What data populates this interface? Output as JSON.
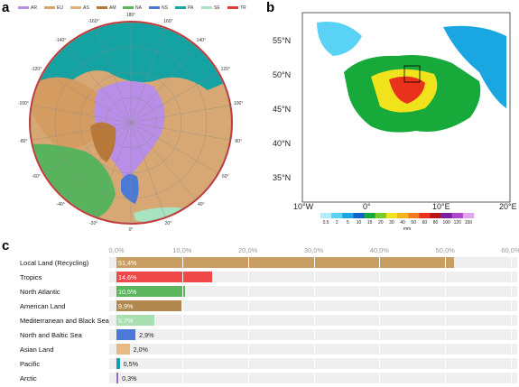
{
  "panels": {
    "a": {
      "letter": "a",
      "legend": [
        {
          "code": "AR",
          "color": "#b98fe0"
        },
        {
          "code": "EU",
          "color": "#d9a46a"
        },
        {
          "code": "AS",
          "color": "#e3b07c"
        },
        {
          "code": "AM",
          "color": "#b97838"
        },
        {
          "code": "NA",
          "color": "#5bb55f"
        },
        {
          "code": "NS",
          "color": "#4a76d6"
        },
        {
          "code": "PA",
          "color": "#17a6a4"
        },
        {
          "code": "SE",
          "color": "#a9e2c4"
        },
        {
          "code": "TR",
          "color": "#e23a3a"
        }
      ],
      "longitude_labels": [
        "180°",
        "-160°",
        "160°",
        "-140°",
        "140°",
        "-120°",
        "120°",
        "-100°",
        "100°",
        "-80°",
        "80°",
        "-60°",
        "60°",
        "-40°",
        "40°",
        "-20°",
        "20°",
        "0°"
      ]
    },
    "b": {
      "letter": "b",
      "lat_labels": [
        "55°N",
        "50°N",
        "45°N",
        "40°N",
        "35°N"
      ],
      "lon_labels": [
        "10°W",
        "0°",
        "10°E",
        "20°E"
      ],
      "colorbar_ticks": [
        "0.5",
        "2",
        "5",
        "10",
        "15",
        "20",
        "30",
        "40",
        "50",
        "60",
        "80",
        "100",
        "120",
        "150"
      ],
      "colorbar_colors": [
        "#b5ecff",
        "#5ad2f5",
        "#1aa6e0",
        "#1064c8",
        "#17a93a",
        "#76cc2a",
        "#f0e21b",
        "#f5b51c",
        "#f07d1c",
        "#e8321c",
        "#b8121c",
        "#7b1fa2",
        "#b046c9",
        "#e3a4ef"
      ],
      "colorbar_unit": "mm"
    },
    "c": {
      "letter": "c",
      "percent_ticks": [
        "0,0%",
        "10,0%",
        "20,0%",
        "30,0%",
        "40,0%",
        "50,0%",
        "60,0%"
      ],
      "bars": [
        {
          "label": "Local Land (Recycling)",
          "value": 51.4,
          "display": "51,4%",
          "color": "#c99e62"
        },
        {
          "label": "Tropics",
          "value": 14.6,
          "display": "14,6%",
          "color": "#f04848"
        },
        {
          "label": "North Atlantic",
          "value": 10.5,
          "display": "10,5%",
          "color": "#5ab55c"
        },
        {
          "label": "American Land",
          "value": 9.9,
          "display": "9,9%",
          "color": "#b3884f"
        },
        {
          "label": "Mediterranean and Black Sea",
          "value": 5.7,
          "display": "5,7%",
          "color": "#a8e0b0"
        },
        {
          "label": "North and Baltic Sea",
          "value": 2.9,
          "display": "2,9%",
          "color": "#4c78d8"
        },
        {
          "label": "Asian Land",
          "value": 2.0,
          "display": "2,0%",
          "color": "#e7b987"
        },
        {
          "label": "Pacific",
          "value": 0.5,
          "display": "0,5%",
          "color": "#159fae"
        },
        {
          "label": "Arctic",
          "value": 0.3,
          "display": "0,3%",
          "color": "#9d64d9"
        }
      ]
    }
  },
  "chart_data": {
    "type": "bar",
    "categories": [
      "Local Land (Recycling)",
      "Tropics",
      "North Atlantic",
      "American Land",
      "Mediterranean and Black Sea",
      "North and Baltic Sea",
      "Asian Land",
      "Pacific",
      "Arctic"
    ],
    "values": [
      51.4,
      14.6,
      10.5,
      9.9,
      5.7,
      2.9,
      2.0,
      0.5,
      0.3
    ],
    "title": "",
    "xlabel": "",
    "ylabel": "",
    "xlim": [
      0,
      60
    ],
    "grid": true
  }
}
